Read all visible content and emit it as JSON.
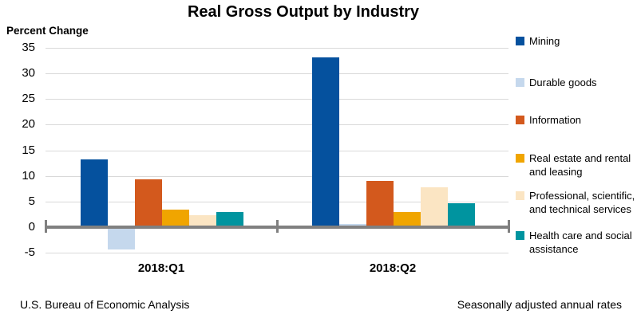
{
  "title": "Real Gross Output by Industry",
  "ylabel": "Percent Change",
  "footer_left": "U.S. Bureau of Economic Analysis",
  "footer_right": "Seasonally adjusted annual rates",
  "chart_data": {
    "type": "bar",
    "title": "Real Gross Output by Industry",
    "ylabel": "Percent Change",
    "categories": [
      "2018:Q1",
      "2018:Q2"
    ],
    "series": [
      {
        "name": "Mining",
        "color": "#05519E",
        "values": [
          13.2,
          33.2
        ],
        "legend_lines": [
          "Mining"
        ]
      },
      {
        "name": "Durable goods",
        "color": "#C5D8ED",
        "values": [
          -4.4,
          0.6
        ],
        "legend_lines": [
          "Durable goods"
        ]
      },
      {
        "name": "Information",
        "color": "#D3591D",
        "values": [
          9.3,
          9.0
        ],
        "legend_lines": [
          "Information"
        ]
      },
      {
        "name": "Real estate and rental and leasing",
        "color": "#F0A500",
        "values": [
          3.5,
          2.9
        ],
        "legend_lines": [
          "Real estate and rental",
          "and leasing"
        ]
      },
      {
        "name": "Professional, scientific, and technical services",
        "color": "#FBE5C3",
        "values": [
          2.4,
          7.8
        ],
        "legend_lines": [
          "Professional, scientific,",
          "and technical services"
        ]
      },
      {
        "name": "Health care and social assistance",
        "color": "#00949F",
        "values": [
          2.9,
          4.6
        ],
        "legend_lines": [
          "Health care and social",
          "assistance"
        ]
      }
    ],
    "y_ticks": [
      35,
      30,
      25,
      20,
      15,
      10,
      5,
      0,
      -5
    ],
    "ylim": [
      -5,
      35
    ],
    "grid": true,
    "legend_position": "right",
    "grid_color": "#D9D9D9",
    "axis_color": "#808080",
    "source": "U.S. Bureau of Economic Analysis",
    "note": "Seasonally adjusted annual rates"
  }
}
